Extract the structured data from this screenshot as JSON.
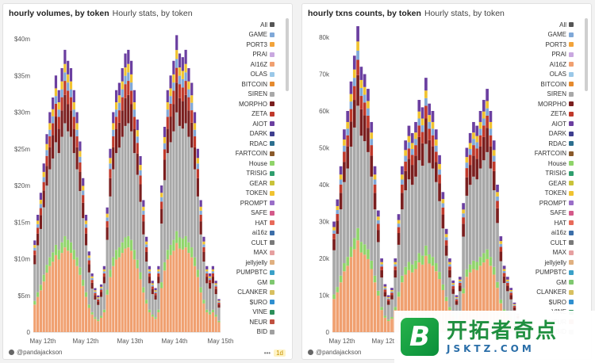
{
  "panels": [
    {
      "title": "hourly volumes, by token",
      "subtitle": "Hourly stats, by token",
      "footer_user": "@pandajackson",
      "footer_menu": "•••",
      "footer_tag": "1d"
    },
    {
      "title": "hourly txns counts, by token",
      "subtitle": "Hourly stats, by token",
      "footer_user": "@pandajackson"
    }
  ],
  "watermark": {
    "logo_letter": "B",
    "cn": "开拓者奇点",
    "en": "JSKTZ.COM"
  },
  "legend": [
    {
      "name": "All",
      "color": "#555555"
    },
    {
      "name": "GAME",
      "color": "#7fa8d8"
    },
    {
      "name": "PORT3",
      "color": "#f2a33a"
    },
    {
      "name": "PRAI",
      "color": "#c9a8e0"
    },
    {
      "name": "AI16Z",
      "color": "#f0a070"
    },
    {
      "name": "OLAS",
      "color": "#9ac8e8"
    },
    {
      "name": "BITCOIN",
      "color": "#e58a2e"
    },
    {
      "name": "SIREN",
      "color": "#a8a8a8"
    },
    {
      "name": "MORPHO",
      "color": "#7a1f1f"
    },
    {
      "name": "ZETA",
      "color": "#c0392b"
    },
    {
      "name": "AIOT",
      "color": "#6b3fa0"
    },
    {
      "name": "DARK",
      "color": "#3f3f8f"
    },
    {
      "name": "RDAC",
      "color": "#2d6f8f"
    },
    {
      "name": "FARTCOIN",
      "color": "#8a5a2b"
    },
    {
      "name": "House",
      "color": "#8fd46a"
    },
    {
      "name": "TRISIG",
      "color": "#2f9e6e"
    },
    {
      "name": "GEAR",
      "color": "#c9c33a"
    },
    {
      "name": "TOKEN",
      "color": "#f0c330"
    },
    {
      "name": "PROMPT",
      "color": "#9a6ec8"
    },
    {
      "name": "SAFE",
      "color": "#d45a8a"
    },
    {
      "name": "HAT",
      "color": "#e86a5a"
    },
    {
      "name": "ai16z",
      "color": "#3c6ea8"
    },
    {
      "name": "CULT",
      "color": "#7a7a7a"
    },
    {
      "name": "MAX",
      "color": "#e6a0a0"
    },
    {
      "name": "jellyjelly",
      "color": "#e0b080"
    },
    {
      "name": "PUMPBTC",
      "color": "#3aa0c8"
    },
    {
      "name": "GM",
      "color": "#7fc870"
    },
    {
      "name": "CLANKER",
      "color": "#d8c060"
    },
    {
      "name": "$URO",
      "color": "#2f8fd0"
    },
    {
      "name": "VINE",
      "color": "#2c8f5a"
    },
    {
      "name": "NEUR",
      "color": "#c05040"
    },
    {
      "name": "BID",
      "color": "#a0a0a0"
    }
  ],
  "chart_data": [
    {
      "type": "bar",
      "stacked": true,
      "title": "hourly volumes, by token",
      "xlabel": "",
      "ylabel": "",
      "x_tick_labels": [
        "May 12th",
        "May 12th",
        "May 13th",
        "May 14th",
        "May 15th"
      ],
      "y_tick_labels": [
        "0",
        "$5m",
        "$10m",
        "$15m",
        "$20m",
        "$25m",
        "$30m",
        "$35m",
        "$40m"
      ],
      "ylim": [
        0,
        40000000
      ],
      "grid": false,
      "legend_position": "right",
      "series_order": [
        "AI16Z",
        "House",
        "SIREN",
        "MORPHO",
        "ZETA",
        "GAME",
        "TOKEN",
        "AIOT"
      ],
      "points": [
        {
          "hour": 1,
          "total": 12.5
        },
        {
          "hour": 2,
          "total": 16
        },
        {
          "hour": 3,
          "total": 19
        },
        {
          "hour": 4,
          "total": 23
        },
        {
          "hour": 5,
          "total": 27
        },
        {
          "hour": 6,
          "total": 30
        },
        {
          "hour": 7,
          "total": 32
        },
        {
          "hour": 8,
          "total": 35
        },
        {
          "hour": 9,
          "total": 33
        },
        {
          "hour": 10,
          "total": 36
        },
        {
          "hour": 11,
          "total": 38.5
        },
        {
          "hour": 12,
          "total": 37
        },
        {
          "hour": 13,
          "total": 36
        },
        {
          "hour": 14,
          "total": 33
        },
        {
          "hour": 15,
          "total": 30
        },
        {
          "hour": 16,
          "total": 26
        },
        {
          "hour": 17,
          "total": 21
        },
        {
          "hour": 18,
          "total": 16
        },
        {
          "hour": 19,
          "total": 11
        },
        {
          "hour": 20,
          "total": 8
        },
        {
          "hour": 21,
          "total": 6
        },
        {
          "hour": 22,
          "total": 5
        },
        {
          "hour": 23,
          "total": 6.5
        },
        {
          "hour": 24,
          "total": 9
        },
        {
          "hour": 25,
          "total": 17
        },
        {
          "hour": 26,
          "total": 25
        },
        {
          "hour": 27,
          "total": 30
        },
        {
          "hour": 28,
          "total": 33
        },
        {
          "hour": 29,
          "total": 34
        },
        {
          "hour": 30,
          "total": 36
        },
        {
          "hour": 31,
          "total": 38
        },
        {
          "hour": 32,
          "total": 38.5
        },
        {
          "hour": 33,
          "total": 37
        },
        {
          "hour": 34,
          "total": 33
        },
        {
          "hour": 35,
          "total": 29
        },
        {
          "hour": 36,
          "total": 24
        },
        {
          "hour": 37,
          "total": 18
        },
        {
          "hour": 38,
          "total": 13
        },
        {
          "hour": 39,
          "total": 9
        },
        {
          "hour": 40,
          "total": 7
        },
        {
          "hour": 41,
          "total": 6
        },
        {
          "hour": 42,
          "total": 9
        },
        {
          "hour": 43,
          "total": 20
        },
        {
          "hour": 44,
          "total": 28
        },
        {
          "hour": 45,
          "total": 33
        },
        {
          "hour": 46,
          "total": 35
        },
        {
          "hour": 47,
          "total": 37
        },
        {
          "hour": 48,
          "total": 40.5
        },
        {
          "hour": 49,
          "total": 38
        },
        {
          "hour": 50,
          "total": 37.5
        },
        {
          "hour": 51,
          "total": 38.5
        },
        {
          "hour": 52,
          "total": 36
        },
        {
          "hour": 53,
          "total": 34
        },
        {
          "hour": 54,
          "total": 30
        },
        {
          "hour": 55,
          "total": 25
        },
        {
          "hour": 56,
          "total": 18
        },
        {
          "hour": 57,
          "total": 13
        },
        {
          "hour": 58,
          "total": 9
        },
        {
          "hour": 59,
          "total": 8
        },
        {
          "hour": 60,
          "total": 9
        },
        {
          "hour": 61,
          "total": 7
        },
        {
          "hour": 62,
          "total": 4.5
        }
      ],
      "total_units": "USD millions"
    },
    {
      "type": "bar",
      "stacked": true,
      "title": "hourly txns counts, by token",
      "xlabel": "",
      "ylabel": "",
      "x_tick_labels": [
        "May 12th",
        "May 12th"
      ],
      "y_tick_labels": [
        "0",
        "10k",
        "20k",
        "30k",
        "40k",
        "50k",
        "60k",
        "70k",
        "80k"
      ],
      "ylim": [
        0,
        80000
      ],
      "grid": false,
      "legend_position": "right",
      "series_order": [
        "AI16Z",
        "House",
        "SIREN",
        "MORPHO",
        "ZETA",
        "GAME",
        "TOKEN",
        "AIOT"
      ],
      "points": [
        {
          "hour": 1,
          "total": 30
        },
        {
          "hour": 2,
          "total": 36
        },
        {
          "hour": 3,
          "total": 45
        },
        {
          "hour": 4,
          "total": 55
        },
        {
          "hour": 5,
          "total": 60
        },
        {
          "hour": 6,
          "total": 68
        },
        {
          "hour": 7,
          "total": 75
        },
        {
          "hour": 8,
          "total": 83
        },
        {
          "hour": 9,
          "total": 72
        },
        {
          "hour": 10,
          "total": 70
        },
        {
          "hour": 11,
          "total": 66
        },
        {
          "hour": 12,
          "total": 57
        },
        {
          "hour": 13,
          "total": 45
        },
        {
          "hour": 14,
          "total": 33
        },
        {
          "hour": 15,
          "total": 20
        },
        {
          "hour": 16,
          "total": 13
        },
        {
          "hour": 17,
          "total": 10
        },
        {
          "hour": 18,
          "total": 12
        },
        {
          "hour": 19,
          "total": 20
        },
        {
          "hour": 20,
          "total": 32
        },
        {
          "hour": 21,
          "total": 45
        },
        {
          "hour": 22,
          "total": 52
        },
        {
          "hour": 23,
          "total": 56
        },
        {
          "hour": 24,
          "total": 54
        },
        {
          "hour": 25,
          "total": 57
        },
        {
          "hour": 26,
          "total": 63
        },
        {
          "hour": 27,
          "total": 61
        },
        {
          "hour": 28,
          "total": 69
        },
        {
          "hour": 29,
          "total": 62
        },
        {
          "hour": 30,
          "total": 60
        },
        {
          "hour": 31,
          "total": 55
        },
        {
          "hour": 32,
          "total": 48
        },
        {
          "hour": 33,
          "total": 38
        },
        {
          "hour": 34,
          "total": 28
        },
        {
          "hour": 35,
          "total": 20
        },
        {
          "hour": 36,
          "total": 14
        },
        {
          "hour": 37,
          "total": 10
        },
        {
          "hour": 38,
          "total": 15
        },
        {
          "hour": 39,
          "total": 35
        },
        {
          "hour": 40,
          "total": 50
        },
        {
          "hour": 41,
          "total": 54
        },
        {
          "hour": 42,
          "total": 57
        },
        {
          "hour": 43,
          "total": 56
        },
        {
          "hour": 44,
          "total": 60
        },
        {
          "hour": 45,
          "total": 63
        },
        {
          "hour": 46,
          "total": 66
        },
        {
          "hour": 47,
          "total": 60
        },
        {
          "hour": 48,
          "total": 52
        },
        {
          "hour": 49,
          "total": 40
        },
        {
          "hour": 50,
          "total": 26
        },
        {
          "hour": 51,
          "total": 18
        },
        {
          "hour": 52,
          "total": 15
        },
        {
          "hour": 53,
          "total": 12
        },
        {
          "hour": 54,
          "total": 8
        },
        {
          "hour": 55,
          "total": 5
        }
      ],
      "total_units": "thousand transactions"
    }
  ]
}
